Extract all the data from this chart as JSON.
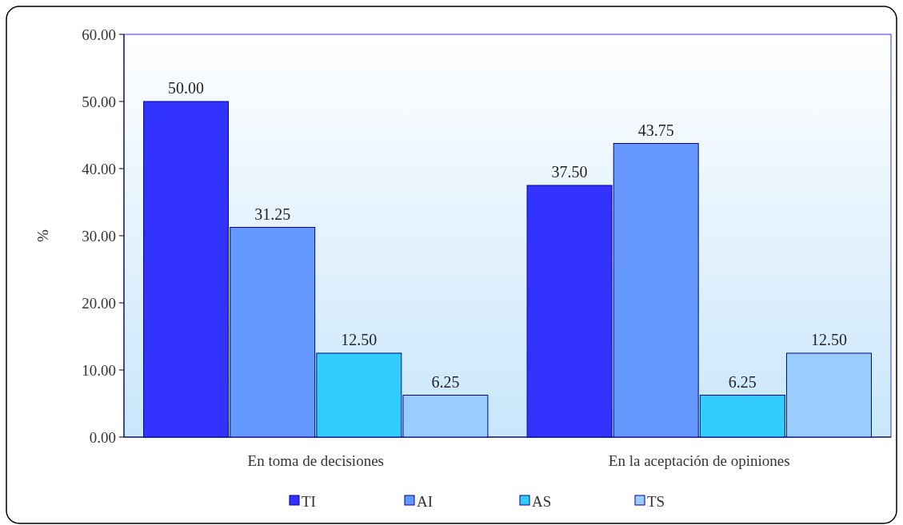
{
  "chart_data": {
    "type": "bar",
    "ylabel": "%",
    "categories": [
      "En toma de decisiones",
      "En la aceptación de opiniones"
    ],
    "series": [
      {
        "name": "TI",
        "color": "#3333ff",
        "values": [
          50.0,
          37.5
        ],
        "value_labels": [
          "50.00",
          "37.50"
        ]
      },
      {
        "name": "AI",
        "color": "#6699ff",
        "values": [
          31.25,
          43.75
        ],
        "value_labels": [
          "31.25",
          "43.75"
        ]
      },
      {
        "name": "AS",
        "color": "#33ccff",
        "values": [
          12.5,
          6.25
        ],
        "value_labels": [
          "12.50",
          "6.25"
        ]
      },
      {
        "name": "TS",
        "color": "#99ccff",
        "values": [
          6.25,
          12.5
        ],
        "value_labels": [
          "6.25",
          "12.50"
        ]
      }
    ],
    "ylim": [
      0,
      60
    ],
    "yticks": [
      {
        "value": 0,
        "label": "0.00"
      },
      {
        "value": 10,
        "label": "10.00"
      },
      {
        "value": 20,
        "label": "20.00"
      },
      {
        "value": 30,
        "label": "30.00"
      },
      {
        "value": 40,
        "label": "40.00"
      },
      {
        "value": 50,
        "label": "50.00"
      },
      {
        "value": 60,
        "label": "60.00"
      }
    ],
    "legend": "bottom",
    "grid": false
  }
}
